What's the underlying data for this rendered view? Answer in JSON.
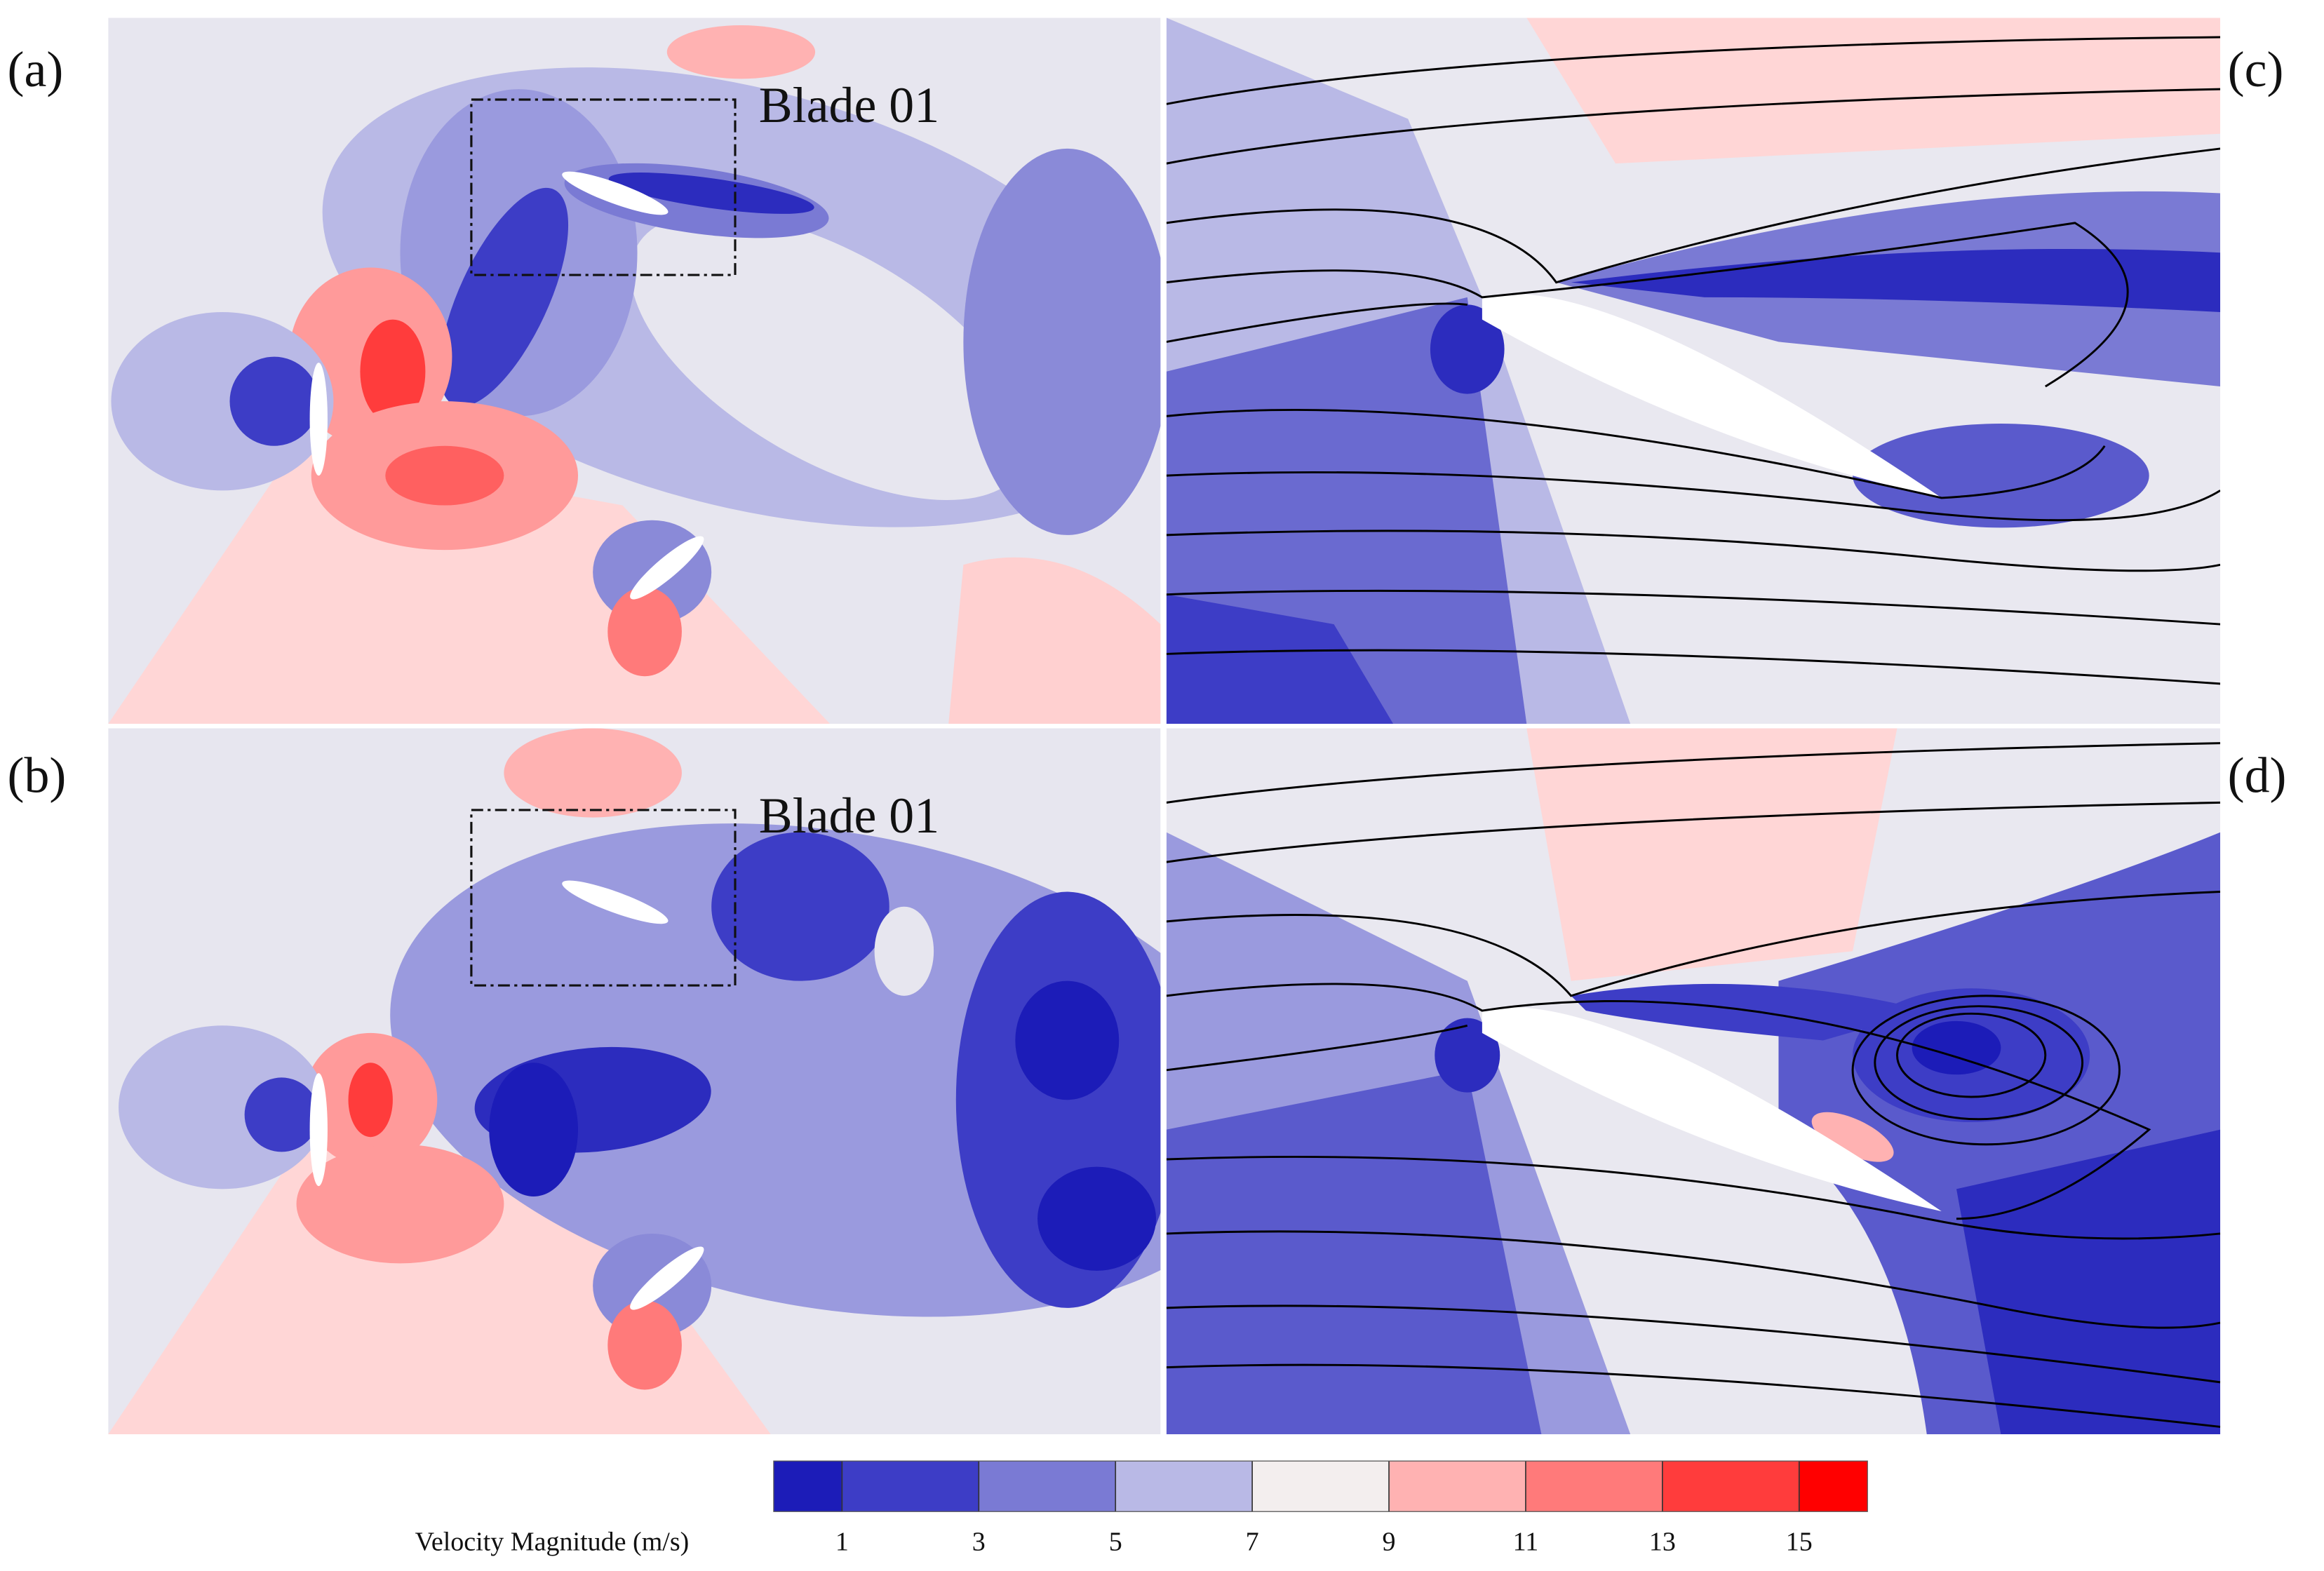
{
  "figure": {
    "panels": [
      {
        "label": "(a)",
        "annotation": "Blade 01"
      },
      {
        "label": "(b)",
        "annotation": "Blade 01"
      },
      {
        "label": "(c)"
      },
      {
        "label": "(d)"
      }
    ],
    "colorbar": {
      "label": "Velocity Magnitude (m/s)",
      "lim": [
        0,
        16
      ],
      "ticks": [
        1,
        3,
        5,
        7,
        9,
        11,
        13,
        15
      ],
      "colors": [
        "#1c1cb8",
        "#3d3dc6",
        "#7a7ad4",
        "#b9b9e6",
        "#f3eeee",
        "#ffb2b2",
        "#ff7a7a",
        "#ff3c3c",
        "#ff0000"
      ]
    }
  }
}
